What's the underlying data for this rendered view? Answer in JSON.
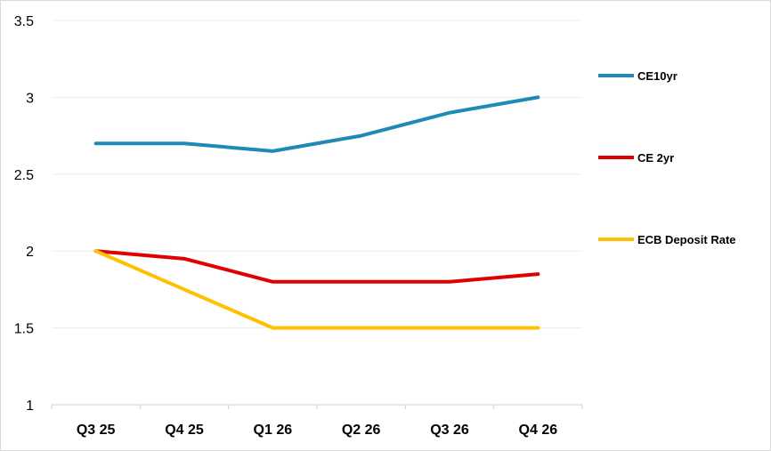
{
  "chart_data": {
    "type": "line",
    "categories": [
      "Q3 25",
      "Q4 25",
      "Q1 26",
      "Q2 26",
      "Q3 26",
      "Q4 26"
    ],
    "series": [
      {
        "name": "CE10yr",
        "color": "#1f8bb5",
        "values": [
          2.7,
          2.7,
          2.65,
          2.75,
          2.9,
          3.0
        ]
      },
      {
        "name": "CE 2yr",
        "color": "#e00000",
        "values": [
          2.0,
          1.95,
          1.8,
          1.8,
          1.8,
          1.85
        ]
      },
      {
        "name": "ECB Deposit Rate",
        "color": "#ffc000",
        "values": [
          2.0,
          1.75,
          1.5,
          1.5,
          1.5,
          1.5
        ]
      }
    ],
    "ylim": [
      1,
      3.5
    ],
    "yticks": [
      1,
      1.5,
      2,
      2.5,
      3,
      3.5
    ],
    "ytick_labels": [
      "1",
      "1.5",
      "2",
      "2.5",
      "3",
      "3.5"
    ],
    "grid": true,
    "legend_position": "right",
    "title": "",
    "xlabel": "",
    "ylabel": ""
  }
}
